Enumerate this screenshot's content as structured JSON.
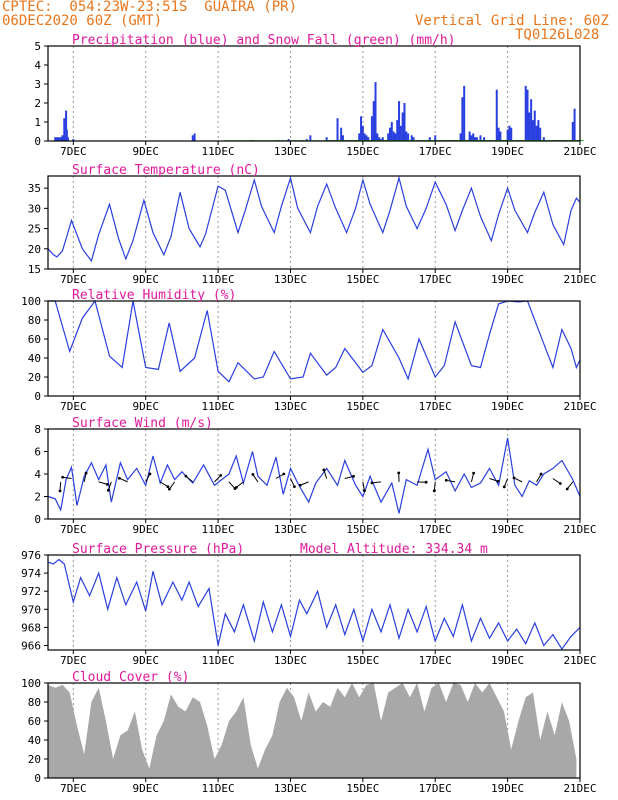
{
  "header": {
    "line1": "CPTEC:  054:23W-23:51S  GUAIRA (PR)",
    "line2": "06DEC2020 60Z (GMT)",
    "grid_note": "Vertical Grid Line: 60Z",
    "code": "TQ0126L028"
  },
  "colors": {
    "header": "#e8761c",
    "title": "#e0189c",
    "series": "#2a3fe0",
    "snow": "#22aa22",
    "cloud": "#a8a8a8",
    "axis": "#000000"
  },
  "x_ticks": [
    "7DEC",
    "9DEC",
    "11DEC",
    "13DEC",
    "15DEC",
    "17DEC",
    "19DEC",
    "21DEC"
  ],
  "chart_data": [
    {
      "type": "bar",
      "title": "Precipitation (blue) and Snow Fall (green) (mm/h)",
      "xlim": [
        6.3,
        21.0
      ],
      "ylim": [
        0,
        5
      ],
      "yticks": [
        0,
        1,
        2,
        3,
        4,
        5
      ],
      "series": [
        {
          "name": "Precipitation",
          "color": "blue",
          "x": [
            6.5,
            6.55,
            6.6,
            6.65,
            6.7,
            6.75,
            6.8,
            6.82,
            6.85,
            7.0,
            10.3,
            10.35,
            12.95,
            13.45,
            13.55,
            14.0,
            14.3,
            14.4,
            14.45,
            14.9,
            14.95,
            15.0,
            15.05,
            15.1,
            15.15,
            15.25,
            15.3,
            15.35,
            15.4,
            15.45,
            15.5,
            15.55,
            15.7,
            15.75,
            15.8,
            15.85,
            15.9,
            15.95,
            16.0,
            16.05,
            16.1,
            16.15,
            16.2,
            16.25,
            16.35,
            16.4,
            16.85,
            17.0,
            17.7,
            17.75,
            17.8,
            17.95,
            18.0,
            18.05,
            18.1,
            18.15,
            18.25,
            18.35,
            18.7,
            18.75,
            18.8,
            19.0,
            19.05,
            19.1,
            19.5,
            19.55,
            19.6,
            19.65,
            19.7,
            19.75,
            19.8,
            19.85,
            19.9,
            20.0,
            20.8,
            20.85
          ],
          "y": [
            0.2,
            0.2,
            0.2,
            0.2,
            0.3,
            1.2,
            1.6,
            0.6,
            0.2,
            0.1,
            0.3,
            0.4,
            0.1,
            0.1,
            0.3,
            0.2,
            1.2,
            0.7,
            0.3,
            0.4,
            1.3,
            0.8,
            0.4,
            0.3,
            0.2,
            1.3,
            2.1,
            3.1,
            0.4,
            0.2,
            0.1,
            0.2,
            0.4,
            0.7,
            1.0,
            0.5,
            0.4,
            1.1,
            2.1,
            0.8,
            1.5,
            2.0,
            0.5,
            0.4,
            0.3,
            0.2,
            0.2,
            0.3,
            0.4,
            2.3,
            2.9,
            0.5,
            0.3,
            0.4,
            0.2,
            0.2,
            0.3,
            0.2,
            2.7,
            0.7,
            0.5,
            0.6,
            0.8,
            0.7,
            2.9,
            2.7,
            1.5,
            2.2,
            1.1,
            1.6,
            0.8,
            1.1,
            0.7,
            0.2,
            1.0,
            1.7
          ]
        },
        {
          "name": "Snow Fall",
          "color": "green",
          "x": [
            11.2,
            11.9,
            12.6,
            13.3,
            14.0,
            14.7,
            15.4,
            16.1,
            16.8,
            17.5,
            18.2,
            18.9,
            19.6,
            20.3
          ],
          "y": [
            0.04,
            0.04,
            0.04,
            0.04,
            0.05,
            0.05,
            0.05,
            0.05,
            0.05,
            0.05,
            0.05,
            0.05,
            0.05,
            0.05
          ]
        }
      ]
    },
    {
      "type": "line",
      "title": "Surface Temperature (nC)",
      "xlim": [
        6.3,
        21.0
      ],
      "ylim": [
        15,
        38
      ],
      "yticks": [
        15,
        20,
        25,
        30,
        35
      ],
      "series": [
        {
          "name": "Temperature",
          "x": [
            6.3,
            6.45,
            6.55,
            6.7,
            6.95,
            7.25,
            7.5,
            7.7,
            8.0,
            8.25,
            8.45,
            8.65,
            8.95,
            9.2,
            9.5,
            9.7,
            9.95,
            10.2,
            10.5,
            10.65,
            11.0,
            11.2,
            11.55,
            11.75,
            12.0,
            12.2,
            12.55,
            12.75,
            13.0,
            13.2,
            13.55,
            13.75,
            14.0,
            14.25,
            14.55,
            14.8,
            15.0,
            15.2,
            15.55,
            15.75,
            16.0,
            16.2,
            16.5,
            16.75,
            17.0,
            17.3,
            17.55,
            17.75,
            18.0,
            18.25,
            18.55,
            18.75,
            19.0,
            19.2,
            19.55,
            19.75,
            20.0,
            20.25,
            20.55,
            20.75,
            20.9,
            21.0
          ],
          "y": [
            20,
            18.5,
            18,
            19.5,
            27,
            20,
            17,
            23.5,
            31,
            22.5,
            17.5,
            22,
            32,
            24,
            18.5,
            23,
            34,
            25,
            20.5,
            23.5,
            35.5,
            34.5,
            24,
            29.5,
            37,
            30.5,
            24,
            30.5,
            37.5,
            30,
            24,
            30.5,
            36,
            30,
            24,
            30,
            37,
            31,
            24,
            29.5,
            37.5,
            30.5,
            25,
            30,
            36.5,
            31,
            24.5,
            29.5,
            35,
            28,
            22,
            28.5,
            35,
            29.5,
            24,
            29,
            34,
            26,
            21,
            29.5,
            32.5,
            31.5
          ]
        }
      ]
    },
    {
      "type": "line",
      "title": "Relative Humidity (%)",
      "xlim": [
        6.3,
        21.0
      ],
      "ylim": [
        0,
        100
      ],
      "yticks": [
        0,
        20,
        40,
        60,
        80,
        100
      ],
      "series": [
        {
          "name": "Relative Humidity",
          "x": [
            6.3,
            6.5,
            6.9,
            7.25,
            7.6,
            8.0,
            8.35,
            8.65,
            9.0,
            9.35,
            9.65,
            9.95,
            10.35,
            10.7,
            11.0,
            11.3,
            11.55,
            12.0,
            12.25,
            12.55,
            13.0,
            13.35,
            13.55,
            14.0,
            14.25,
            14.5,
            15.0,
            15.25,
            15.55,
            16.0,
            16.25,
            16.55,
            17.0,
            17.25,
            17.55,
            18.0,
            18.25,
            18.5,
            18.75,
            19.0,
            19.3,
            19.55,
            20.0,
            20.25,
            20.5,
            20.75,
            20.9,
            21.0
          ],
          "y": [
            100,
            100,
            47,
            82,
            100,
            42,
            30,
            100,
            30,
            28,
            77,
            26,
            40,
            90,
            26,
            15,
            35,
            18,
            20,
            47,
            18,
            20,
            45,
            22,
            30,
            50,
            25,
            32,
            70,
            40,
            18,
            60,
            20,
            32,
            78,
            32,
            30,
            65,
            97,
            100,
            99,
            100,
            55,
            30,
            70,
            50,
            30,
            38
          ]
        }
      ]
    },
    {
      "type": "line",
      "title": "Surface Wind (m/s)",
      "xlim": [
        6.3,
        21.0
      ],
      "ylim": [
        0,
        8
      ],
      "yticks": [
        0,
        2,
        4,
        6,
        8
      ],
      "series": [
        {
          "name": "Wind speed",
          "x": [
            6.3,
            6.5,
            6.65,
            6.8,
            6.95,
            7.1,
            7.3,
            7.5,
            7.7,
            7.9,
            8.05,
            8.3,
            8.5,
            8.75,
            9.0,
            9.2,
            9.4,
            9.6,
            9.8,
            10.0,
            10.3,
            10.6,
            10.9,
            11.1,
            11.3,
            11.5,
            11.7,
            11.95,
            12.1,
            12.35,
            12.6,
            12.8,
            13.0,
            13.2,
            13.5,
            13.7,
            14.0,
            14.3,
            14.5,
            14.8,
            15.0,
            15.2,
            15.5,
            15.8,
            16.0,
            16.2,
            16.5,
            16.8,
            17.0,
            17.3,
            17.55,
            17.8,
            18.0,
            18.25,
            18.5,
            18.75,
            19.0,
            19.2,
            19.4,
            19.6,
            19.8,
            20.0,
            20.25,
            20.5,
            20.8,
            21.0
          ],
          "y": [
            2,
            1.8,
            0.8,
            3.5,
            4.6,
            1.2,
            3.8,
            5,
            3.5,
            4.8,
            1.5,
            5,
            3.5,
            4.5,
            3,
            5.6,
            3.2,
            4.8,
            3.5,
            4.2,
            3.2,
            4.8,
            3,
            3.5,
            4,
            5.6,
            3.2,
            6,
            3.8,
            3,
            5.5,
            2.2,
            4.5,
            3.2,
            1.5,
            3.2,
            4.5,
            3,
            5.2,
            3,
            2,
            3.8,
            1.5,
            3.2,
            0.5,
            3.5,
            3,
            6.2,
            3.5,
            4.2,
            2.5,
            4,
            2.8,
            3.2,
            4.5,
            3,
            7.2,
            3,
            2,
            3.4,
            3,
            4,
            4.5,
            5.2,
            3.5,
            2
          ]
        }
      ]
    },
    {
      "type": "line",
      "title": "Surface Pressure (hPa)",
      "annotation": "Model Altitude: 334.34 m",
      "xlim": [
        6.3,
        21.0
      ],
      "ylim": [
        965.5,
        976
      ],
      "yticks": [
        966,
        968,
        970,
        972,
        974,
        976
      ],
      "series": [
        {
          "name": "Pressure",
          "x": [
            6.3,
            6.45,
            6.6,
            6.75,
            7.0,
            7.2,
            7.45,
            7.7,
            7.95,
            8.2,
            8.45,
            8.75,
            9.0,
            9.2,
            9.45,
            9.75,
            10.0,
            10.2,
            10.45,
            10.75,
            11.0,
            11.2,
            11.45,
            11.7,
            12.0,
            12.25,
            12.5,
            12.75,
            13.0,
            13.25,
            13.45,
            13.75,
            14.0,
            14.25,
            14.5,
            14.75,
            15.0,
            15.25,
            15.5,
            15.75,
            16.0,
            16.25,
            16.5,
            16.75,
            17.0,
            17.25,
            17.5,
            17.75,
            18.0,
            18.25,
            18.5,
            18.75,
            19.0,
            19.25,
            19.5,
            19.75,
            20.0,
            20.25,
            20.5,
            20.75,
            21.0
          ],
          "y": [
            975.2,
            975.0,
            975.5,
            975.0,
            970.8,
            973.5,
            971.5,
            974.0,
            970.0,
            973.5,
            970.5,
            973.0,
            969.8,
            974.2,
            970.5,
            973.0,
            971.0,
            973.0,
            970.3,
            972.3,
            966.0,
            969.5,
            967.5,
            970.5,
            966.5,
            970.8,
            967.5,
            970.5,
            967.0,
            971.0,
            969.5,
            972.0,
            968.0,
            970.5,
            967.2,
            970.0,
            966.5,
            970.0,
            967.5,
            970.5,
            966.8,
            970.0,
            967.5,
            970.3,
            966.5,
            969.0,
            967.0,
            970.5,
            966.5,
            969.0,
            966.8,
            968.5,
            966.5,
            967.8,
            966.2,
            968.5,
            966.0,
            967.2,
            965.6,
            967.0,
            968.0
          ]
        }
      ]
    },
    {
      "type": "area",
      "title": "Cloud Cover (%)",
      "xlim": [
        6.3,
        21.0
      ],
      "ylim": [
        0,
        100
      ],
      "yticks": [
        0,
        20,
        40,
        60,
        80,
        100
      ],
      "series": [
        {
          "name": "Cloud Cover",
          "x": [
            6.3,
            6.5,
            6.7,
            6.9,
            7.1,
            7.3,
            7.5,
            7.7,
            7.9,
            8.1,
            8.3,
            8.5,
            8.7,
            8.9,
            9.1,
            9.3,
            9.5,
            9.7,
            9.9,
            10.1,
            10.3,
            10.5,
            10.7,
            10.9,
            11.1,
            11.3,
            11.5,
            11.7,
            11.9,
            12.1,
            12.3,
            12.5,
            12.7,
            12.9,
            13.1,
            13.3,
            13.5,
            13.7,
            13.9,
            14.1,
            14.3,
            14.5,
            14.7,
            14.9,
            15.1,
            15.3,
            15.5,
            15.7,
            15.9,
            16.1,
            16.3,
            16.5,
            16.7,
            16.9,
            17.1,
            17.3,
            17.5,
            17.7,
            17.9,
            18.1,
            18.3,
            18.5,
            18.7,
            18.9,
            19.1,
            19.3,
            19.5,
            19.7,
            19.9,
            20.1,
            20.3,
            20.5,
            20.7,
            20.9
          ],
          "y": [
            98,
            95,
            98,
            90,
            55,
            25,
            80,
            95,
            60,
            20,
            45,
            50,
            70,
            30,
            10,
            45,
            60,
            88,
            75,
            70,
            85,
            80,
            55,
            20,
            35,
            60,
            70,
            85,
            35,
            10,
            30,
            45,
            80,
            95,
            85,
            60,
            90,
            70,
            80,
            75,
            95,
            85,
            100,
            85,
            98,
            100,
            60,
            90,
            95,
            100,
            85,
            100,
            70,
            95,
            100,
            80,
            100,
            98,
            80,
            100,
            90,
            100,
            85,
            70,
            30,
            60,
            85,
            90,
            40,
            70,
            45,
            80,
            60,
            20
          ]
        }
      ]
    }
  ]
}
